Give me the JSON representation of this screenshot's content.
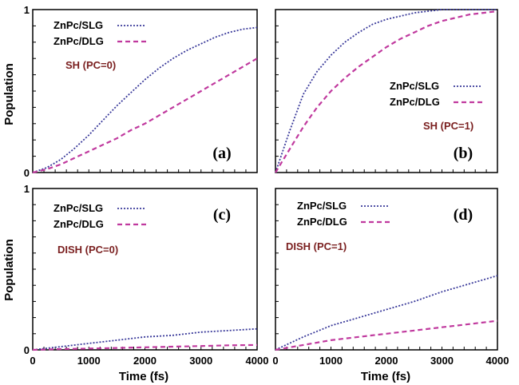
{
  "figure": {
    "ylabel": "Population",
    "xlabel": "Time (fs)"
  },
  "colors": {
    "slg": "#3a3a9a",
    "dlg": "#c0399e",
    "condition": "#7a1f1f"
  },
  "chart_data": [
    {
      "type": "line",
      "panel_label": "(a)",
      "condition": "SH (PC=0)",
      "xlim": [
        0,
        4000
      ],
      "ylim": [
        0,
        1
      ],
      "xticks": [],
      "yticks": [
        "0",
        "1"
      ],
      "ylabel": "Population",
      "xlabel": "",
      "legend_position": "top-left",
      "x": [
        0,
        250,
        500,
        750,
        1000,
        1250,
        1500,
        1750,
        2000,
        2250,
        2500,
        2750,
        3000,
        3250,
        3500,
        3750,
        4000
      ],
      "series": [
        {
          "name": "ZnPc/SLG",
          "style": "dotted",
          "values": [
            0,
            0.03,
            0.08,
            0.15,
            0.23,
            0.32,
            0.41,
            0.49,
            0.57,
            0.64,
            0.7,
            0.75,
            0.79,
            0.83,
            0.86,
            0.88,
            0.89
          ]
        },
        {
          "name": "ZnPc/DLG",
          "style": "dashed",
          "values": [
            0,
            0.02,
            0.05,
            0.09,
            0.13,
            0.17,
            0.21,
            0.26,
            0.3,
            0.35,
            0.4,
            0.45,
            0.5,
            0.55,
            0.6,
            0.65,
            0.7
          ]
        }
      ]
    },
    {
      "type": "line",
      "panel_label": "(b)",
      "condition": "SH (PC=1)",
      "xlim": [
        0,
        4000
      ],
      "ylim": [
        0,
        1
      ],
      "xticks": [],
      "yticks": [],
      "ylabel": "",
      "xlabel": "",
      "legend_position": "center-right",
      "x": [
        0,
        250,
        500,
        750,
        1000,
        1250,
        1500,
        1750,
        2000,
        2250,
        2500,
        2750,
        3000,
        3250,
        3500,
        3750,
        4000
      ],
      "series": [
        {
          "name": "ZnPc/SLG",
          "style": "dotted",
          "values": [
            0,
            0.25,
            0.48,
            0.62,
            0.72,
            0.8,
            0.86,
            0.91,
            0.94,
            0.96,
            0.98,
            0.99,
            1.0,
            1.0,
            1.0,
            1.0,
            1.0
          ]
        },
        {
          "name": "ZnPc/DLG",
          "style": "dashed",
          "values": [
            0,
            0.14,
            0.28,
            0.4,
            0.5,
            0.58,
            0.65,
            0.71,
            0.77,
            0.82,
            0.86,
            0.9,
            0.93,
            0.95,
            0.97,
            0.98,
            0.99
          ]
        }
      ]
    },
    {
      "type": "line",
      "panel_label": "(c)",
      "condition": "DISH (PC=0)",
      "xlim": [
        0,
        4000
      ],
      "ylim": [
        0,
        1
      ],
      "xticks": [
        "0",
        "1000",
        "2000",
        "3000",
        "4000"
      ],
      "yticks": [
        "0",
        "1"
      ],
      "ylabel": "Population",
      "xlabel": "Time (fs)",
      "legend_position": "top-left",
      "x": [
        0,
        500,
        1000,
        1500,
        2000,
        2500,
        3000,
        3500,
        4000
      ],
      "series": [
        {
          "name": "ZnPc/SLG",
          "style": "dotted",
          "values": [
            0,
            0.02,
            0.04,
            0.06,
            0.08,
            0.09,
            0.11,
            0.12,
            0.13
          ]
        },
        {
          "name": "ZnPc/DLG",
          "style": "dashed",
          "values": [
            0,
            0.005,
            0.008,
            0.012,
            0.016,
            0.02,
            0.024,
            0.028,
            0.03
          ]
        }
      ]
    },
    {
      "type": "line",
      "panel_label": "(d)",
      "condition": "DISH (PC=1)",
      "xlim": [
        0,
        4000
      ],
      "ylim": [
        0,
        1
      ],
      "xticks": [
        "0",
        "1000",
        "2000",
        "3000",
        "4000"
      ],
      "yticks": [],
      "ylabel": "",
      "xlabel": "Time (fs)",
      "legend_position": "top-left",
      "x": [
        0,
        500,
        1000,
        1500,
        2000,
        2500,
        3000,
        3500,
        4000
      ],
      "series": [
        {
          "name": "ZnPc/SLG",
          "style": "dotted",
          "values": [
            0,
            0.08,
            0.15,
            0.2,
            0.25,
            0.3,
            0.36,
            0.41,
            0.46
          ]
        },
        {
          "name": "ZnPc/DLG",
          "style": "dashed",
          "values": [
            0,
            0.03,
            0.06,
            0.08,
            0.1,
            0.12,
            0.14,
            0.16,
            0.18
          ]
        }
      ]
    }
  ]
}
